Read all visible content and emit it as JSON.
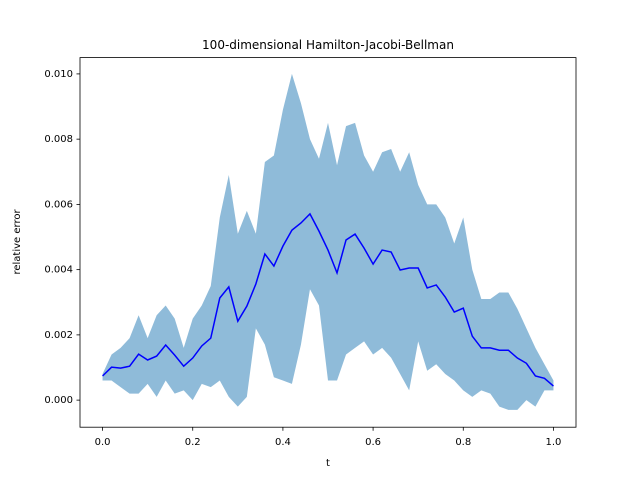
{
  "chart_data": {
    "type": "line",
    "title": "100-dimensional Hamilton-Jacobi-Bellman",
    "xlabel": "t",
    "ylabel": "relative error",
    "x": [
      0,
      0.02,
      0.04,
      0.06,
      0.08,
      0.1,
      0.12,
      0.14,
      0.16,
      0.18,
      0.2,
      0.22,
      0.24,
      0.26,
      0.28,
      0.3,
      0.32,
      0.34,
      0.36,
      0.38,
      0.4,
      0.42,
      0.44,
      0.46,
      0.48,
      0.5,
      0.52,
      0.54,
      0.56,
      0.58,
      0.6,
      0.62,
      0.64,
      0.66,
      0.68,
      0.7,
      0.72,
      0.74,
      0.76,
      0.78,
      0.8,
      0.82,
      0.84,
      0.86,
      0.88,
      0.9,
      0.92,
      0.94,
      0.96,
      0.98,
      1.0
    ],
    "series": [
      {
        "color": "#0000ff",
        "values": [
          0.00074,
          0.00101,
          0.00098,
          0.00104,
          0.00141,
          0.00123,
          0.00135,
          0.00169,
          0.00138,
          0.00104,
          0.00129,
          0.00166,
          0.0019,
          0.00313,
          0.00347,
          0.00242,
          0.00288,
          0.00356,
          0.00448,
          0.00411,
          0.00472,
          0.00521,
          0.00543,
          0.00571,
          0.00518,
          0.0046,
          0.0039,
          0.00491,
          0.00509,
          0.00466,
          0.00417,
          0.0046,
          0.00454,
          0.00399,
          0.00405,
          0.00405,
          0.00344,
          0.00353,
          0.00316,
          0.0027,
          0.00282,
          0.00196,
          0.0016,
          0.0016,
          0.00153,
          0.00153,
          0.00129,
          0.00113,
          0.00074,
          0.00067,
          0.00043
        ]
      }
    ],
    "band": {
      "color": "#8fbbd9",
      "upper": [
        0.0008,
        0.0014,
        0.0016,
        0.0019,
        0.0026,
        0.0019,
        0.0026,
        0.0029,
        0.0025,
        0.0016,
        0.0025,
        0.0029,
        0.0035,
        0.0056,
        0.0069,
        0.0051,
        0.0058,
        0.0051,
        0.0073,
        0.0075,
        0.0089,
        0.01,
        0.0091,
        0.008,
        0.0074,
        0.0085,
        0.0072,
        0.0084,
        0.0085,
        0.0075,
        0.007,
        0.0076,
        0.0077,
        0.007,
        0.0076,
        0.0066,
        0.006,
        0.006,
        0.0056,
        0.0048,
        0.0056,
        0.004,
        0.0031,
        0.0031,
        0.0033,
        0.0033,
        0.0028,
        0.0022,
        0.0016,
        0.0011,
        0.0006
      ],
      "lower": [
        0.0006,
        0.0006,
        0.0004,
        0.0002,
        0.0002,
        0.0005,
        0.0001,
        0.0006,
        0.0002,
        0.0003,
        0.0,
        0.0005,
        0.0004,
        0.0006,
        0.0001,
        -0.0002,
        0.0001,
        0.0022,
        0.0017,
        0.0007,
        0.0006,
        0.0005,
        0.0017,
        0.0034,
        0.0029,
        0.0006,
        0.0006,
        0.0014,
        0.0016,
        0.0018,
        0.0014,
        0.0016,
        0.0013,
        0.0008,
        0.0003,
        0.0018,
        0.0009,
        0.0011,
        0.0008,
        0.0006,
        0.0003,
        0.0001,
        0.0003,
        0.0002,
        -0.0002,
        -0.0003,
        -0.0003,
        0.0,
        -0.0002,
        0.0003,
        0.0003
      ]
    },
    "xlim": [
      -0.05,
      1.05
    ],
    "ylim": [
      -0.00083,
      0.0105
    ],
    "xticks": [
      {
        "value": 0,
        "label": "0.0"
      },
      {
        "value": 0.2,
        "label": "0.2"
      },
      {
        "value": 0.4,
        "label": "0.4"
      },
      {
        "value": 0.6,
        "label": "0.6"
      },
      {
        "value": 0.8,
        "label": "0.8"
      },
      {
        "value": 1.0,
        "label": "1.0"
      }
    ],
    "yticks": [
      {
        "value": 0,
        "label": "0.000"
      },
      {
        "value": 0.002,
        "label": "0.002"
      },
      {
        "value": 0.004,
        "label": "0.004"
      },
      {
        "value": 0.006,
        "label": "0.006"
      },
      {
        "value": 0.008,
        "label": "0.008"
      },
      {
        "value": 0.01,
        "label": "0.010"
      }
    ]
  }
}
